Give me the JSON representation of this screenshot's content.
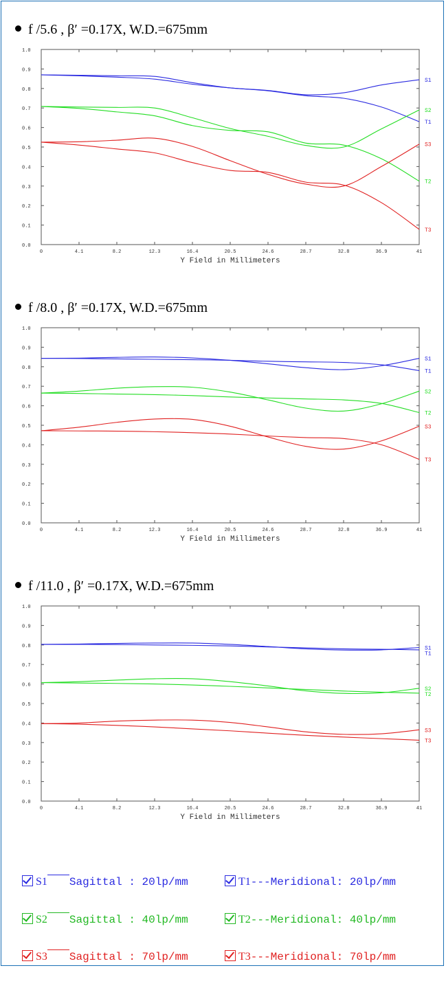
{
  "chart_data": [
    {
      "type": "line",
      "title": "f /5.6 , β′ =0.17X,  W.D.=675mm",
      "xlabel": "Y Field in Millimeters",
      "ylabel": "",
      "xlim": [
        0,
        41
      ],
      "ylim": [
        0,
        1.0
      ],
      "x_ticks": [
        "0",
        "4.1",
        "8.2",
        "12.3",
        "16.4",
        "20.5",
        "24.6",
        "28.7",
        "32.8",
        "36.9",
        "41"
      ],
      "y_ticks": [
        "0.0",
        "0.1",
        "0.2",
        "0.3",
        "0.4",
        "0.5",
        "0.6",
        "0.7",
        "0.8",
        "0.9",
        "1.0"
      ],
      "grid": false,
      "series": [
        {
          "name": "S1",
          "color": "#2a2ae0",
          "x": [
            0,
            4.1,
            8.2,
            12.3,
            16.4,
            20.5,
            24.6,
            28.7,
            32.8,
            36.9,
            41
          ],
          "y": [
            0.87,
            0.868,
            0.865,
            0.862,
            0.83,
            0.803,
            0.79,
            0.768,
            0.778,
            0.818,
            0.845
          ]
        },
        {
          "name": "T1",
          "color": "#2a2ae0",
          "x": [
            0,
            4.1,
            8.2,
            12.3,
            16.4,
            20.5,
            24.6,
            28.7,
            32.8,
            36.9,
            41
          ],
          "y": [
            0.87,
            0.865,
            0.858,
            0.848,
            0.822,
            0.803,
            0.788,
            0.763,
            0.75,
            0.705,
            0.63
          ]
        },
        {
          "name": "S2",
          "color": "#22dd22",
          "x": [
            0,
            4.1,
            8.2,
            12.3,
            16.4,
            20.5,
            24.6,
            28.7,
            32.8,
            36.9,
            41
          ],
          "y": [
            0.708,
            0.705,
            0.703,
            0.7,
            0.65,
            0.595,
            0.555,
            0.508,
            0.5,
            0.593,
            0.69
          ]
        },
        {
          "name": "T2",
          "color": "#22dd22",
          "x": [
            0,
            4.1,
            8.2,
            12.3,
            16.4,
            20.5,
            24.6,
            28.7,
            32.8,
            36.9,
            41
          ],
          "y": [
            0.708,
            0.698,
            0.68,
            0.66,
            0.61,
            0.585,
            0.578,
            0.52,
            0.51,
            0.44,
            0.325
          ]
        },
        {
          "name": "S3",
          "color": "#e02020",
          "x": [
            0,
            4.1,
            8.2,
            12.3,
            16.4,
            20.5,
            24.6,
            28.7,
            32.8,
            36.9,
            41
          ],
          "y": [
            0.525,
            0.527,
            0.535,
            0.545,
            0.503,
            0.43,
            0.36,
            0.31,
            0.3,
            0.4,
            0.515
          ]
        },
        {
          "name": "T3",
          "color": "#e02020",
          "x": [
            0,
            4.1,
            8.2,
            12.3,
            16.4,
            20.5,
            24.6,
            28.7,
            32.8,
            36.9,
            41
          ],
          "y": [
            0.525,
            0.51,
            0.49,
            0.47,
            0.42,
            0.38,
            0.37,
            0.32,
            0.305,
            0.215,
            0.078
          ]
        }
      ]
    },
    {
      "type": "line",
      "title": "f /8.0 , β′ =0.17X,  W.D.=675mm",
      "xlabel": "Y Field in Millimeters",
      "ylabel": "",
      "xlim": [
        0,
        41
      ],
      "ylim": [
        0,
        1.0
      ],
      "x_ticks": [
        "0",
        "4.1",
        "8.2",
        "12.3",
        "16.4",
        "20.5",
        "24.6",
        "28.7",
        "32.8",
        "36.9",
        "41"
      ],
      "y_ticks": [
        "0.0",
        "0.1",
        "0.2",
        "0.3",
        "0.4",
        "0.5",
        "0.6",
        "0.7",
        "0.8",
        "0.9",
        "1.0"
      ],
      "grid": false,
      "series": [
        {
          "name": "S1",
          "color": "#2a2ae0",
          "x": [
            0,
            4.1,
            8.2,
            12.3,
            16.4,
            20.5,
            24.6,
            28.7,
            32.8,
            36.9,
            41
          ],
          "y": [
            0.843,
            0.844,
            0.848,
            0.85,
            0.845,
            0.833,
            0.815,
            0.795,
            0.785,
            0.805,
            0.843
          ]
        },
        {
          "name": "T1",
          "color": "#2a2ae0",
          "x": [
            0,
            4.1,
            8.2,
            12.3,
            16.4,
            20.5,
            24.6,
            28.7,
            32.8,
            36.9,
            41
          ],
          "y": [
            0.843,
            0.842,
            0.84,
            0.838,
            0.836,
            0.833,
            0.828,
            0.825,
            0.822,
            0.81,
            0.78
          ]
        },
        {
          "name": "S2",
          "color": "#22dd22",
          "x": [
            0,
            4.1,
            8.2,
            12.3,
            16.4,
            20.5,
            24.6,
            28.7,
            32.8,
            36.9,
            41
          ],
          "y": [
            0.665,
            0.675,
            0.69,
            0.698,
            0.695,
            0.67,
            0.63,
            0.588,
            0.573,
            0.61,
            0.675
          ]
        },
        {
          "name": "T2",
          "color": "#22dd22",
          "x": [
            0,
            4.1,
            8.2,
            12.3,
            16.4,
            20.5,
            24.6,
            28.7,
            32.8,
            36.9,
            41
          ],
          "y": [
            0.665,
            0.663,
            0.66,
            0.657,
            0.652,
            0.645,
            0.64,
            0.635,
            0.63,
            0.612,
            0.565
          ]
        },
        {
          "name": "S3",
          "color": "#e02020",
          "x": [
            0,
            4.1,
            8.2,
            12.3,
            16.4,
            20.5,
            24.6,
            28.7,
            32.8,
            36.9,
            41
          ],
          "y": [
            0.472,
            0.49,
            0.515,
            0.532,
            0.53,
            0.495,
            0.44,
            0.392,
            0.378,
            0.42,
            0.495
          ]
        },
        {
          "name": "T3",
          "color": "#e02020",
          "x": [
            0,
            4.1,
            8.2,
            12.3,
            16.4,
            20.5,
            24.6,
            28.7,
            32.8,
            36.9,
            41
          ],
          "y": [
            0.472,
            0.471,
            0.47,
            0.467,
            0.462,
            0.455,
            0.445,
            0.437,
            0.432,
            0.4,
            0.325
          ]
        }
      ]
    },
    {
      "type": "line",
      "title": "f /11.0 , β′ =0.17X,  W.D.=675mm",
      "xlabel": "Y Field in Millimeters",
      "ylabel": "",
      "xlim": [
        0,
        41
      ],
      "ylim": [
        0,
        1.0
      ],
      "x_ticks": [
        "0",
        "4.1",
        "8.2",
        "12.3",
        "16.4",
        "20.5",
        "24.6",
        "28.7",
        "32.8",
        "36.9",
        "41"
      ],
      "y_ticks": [
        "0.0",
        "0.1",
        "0.2",
        "0.3",
        "0.4",
        "0.5",
        "0.6",
        "0.7",
        "0.8",
        "0.9",
        "1.0"
      ],
      "grid": false,
      "series": [
        {
          "name": "S1",
          "color": "#2a2ae0",
          "x": [
            0,
            4.1,
            8.2,
            12.3,
            16.4,
            20.5,
            24.6,
            28.7,
            32.8,
            36.9,
            41
          ],
          "y": [
            0.803,
            0.805,
            0.808,
            0.81,
            0.81,
            0.803,
            0.792,
            0.78,
            0.774,
            0.775,
            0.787
          ]
        },
        {
          "name": "T1",
          "color": "#2a2ae0",
          "x": [
            0,
            4.1,
            8.2,
            12.3,
            16.4,
            20.5,
            24.6,
            28.7,
            32.8,
            36.9,
            41
          ],
          "y": [
            0.803,
            0.803,
            0.802,
            0.8,
            0.798,
            0.795,
            0.79,
            0.785,
            0.78,
            0.778,
            0.775
          ]
        },
        {
          "name": "S2",
          "color": "#22dd22",
          "x": [
            0,
            4.1,
            8.2,
            12.3,
            16.4,
            20.5,
            24.6,
            28.7,
            32.8,
            36.9,
            41
          ],
          "y": [
            0.607,
            0.612,
            0.62,
            0.627,
            0.627,
            0.612,
            0.59,
            0.565,
            0.552,
            0.555,
            0.578
          ]
        },
        {
          "name": "T2",
          "color": "#22dd22",
          "x": [
            0,
            4.1,
            8.2,
            12.3,
            16.4,
            20.5,
            24.6,
            28.7,
            32.8,
            36.9,
            41
          ],
          "y": [
            0.607,
            0.605,
            0.603,
            0.6,
            0.595,
            0.588,
            0.58,
            0.572,
            0.564,
            0.558,
            0.553
          ]
        },
        {
          "name": "S3",
          "color": "#e02020",
          "x": [
            0,
            4.1,
            8.2,
            12.3,
            16.4,
            20.5,
            24.6,
            28.7,
            32.8,
            36.9,
            41
          ],
          "y": [
            0.397,
            0.4,
            0.41,
            0.415,
            0.415,
            0.403,
            0.38,
            0.355,
            0.342,
            0.345,
            0.365
          ]
        },
        {
          "name": "T3",
          "color": "#e02020",
          "x": [
            0,
            4.1,
            8.2,
            12.3,
            16.4,
            20.5,
            24.6,
            28.7,
            32.8,
            36.9,
            41
          ],
          "y": [
            0.397,
            0.394,
            0.388,
            0.38,
            0.37,
            0.36,
            0.348,
            0.337,
            0.328,
            0.32,
            0.312
          ]
        }
      ]
    }
  ],
  "legend": {
    "items": [
      {
        "code": "S1",
        "label": "Sagittal : 20lp/mm",
        "color": "#2a2ae0",
        "dash": "solid"
      },
      {
        "code": "T1",
        "label": "Meridional: 20lp/mm",
        "color": "#2a2ae0",
        "dash": "dashed"
      },
      {
        "code": "S2",
        "label": "Sagittal : 40lp/mm",
        "color": "#22dd22",
        "dash": "solid"
      },
      {
        "code": "T2",
        "label": "Meridional: 40lp/mm",
        "color": "#22dd22",
        "dash": "dashed"
      },
      {
        "code": "S3",
        "label": "Sagittal : 70lp/mm",
        "color": "#e02020",
        "dash": "solid"
      },
      {
        "code": "T3",
        "label": "Meridional: 70lp/mm",
        "color": "#e02020",
        "dash": "dashed"
      }
    ]
  }
}
